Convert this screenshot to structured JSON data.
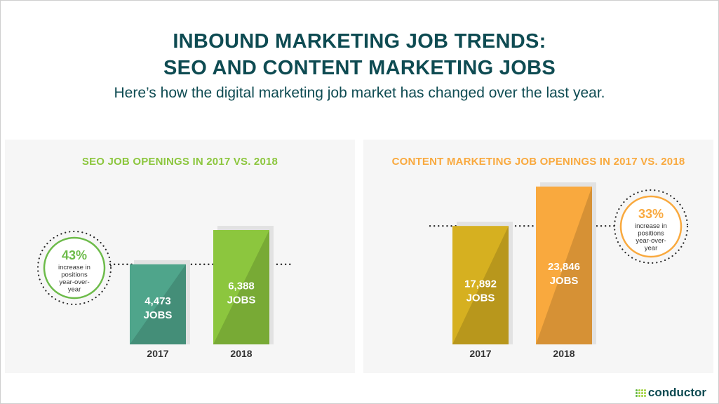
{
  "header": {
    "title_line1": "INBOUND MARKETING JOB TRENDS:",
    "title_line2": "SEO AND CONTENT MARKETING JOBS",
    "subtitle": "Here’s how the digital marketing job market has changed over the last year."
  },
  "brand": {
    "name": "conductor"
  },
  "chart_data": [
    {
      "type": "bar",
      "title": "SEO JOB OPENINGS IN 2017 VS. 2018",
      "categories": [
        "2017",
        "2018"
      ],
      "values": [
        4473,
        6388
      ],
      "value_labels": [
        "4,473",
        "6,388"
      ],
      "unit_label": "JOBS",
      "ylim": [
        0,
        6388
      ],
      "colors": [
        "#4fa58b",
        "#8cc63e"
      ],
      "title_color": "#8cc63e",
      "callout": {
        "value": "43%",
        "lines": [
          "increase in",
          "positions",
          "year-over-",
          "year"
        ],
        "color": "#6dbb4a",
        "placement": "left"
      }
    },
    {
      "type": "bar",
      "title": "CONTENT MARKETING JOB OPENINGS IN 2017 VS. 2018",
      "categories": [
        "2017",
        "2018"
      ],
      "values": [
        17892,
        23846
      ],
      "value_labels": [
        "17,892",
        "23,846"
      ],
      "unit_label": "JOBS",
      "ylim": [
        0,
        23846
      ],
      "colors": [
        "#d6b020",
        "#f9a93e"
      ],
      "title_color": "#f9a93e",
      "callout": {
        "value": "33%",
        "lines": [
          "increase in",
          "positions",
          "year-over-",
          "year"
        ],
        "color": "#f9a93e",
        "placement": "right"
      }
    }
  ]
}
